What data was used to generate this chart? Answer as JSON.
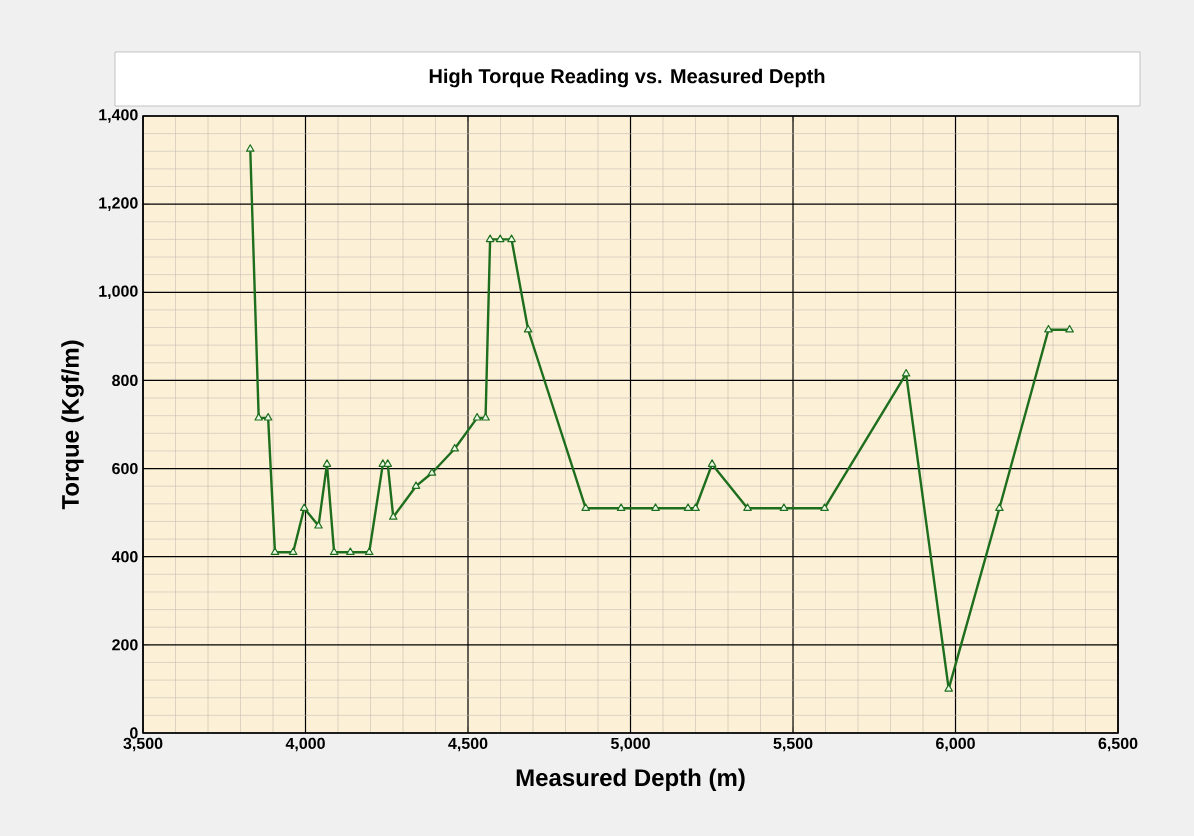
{
  "chart_data": {
    "type": "line",
    "title": "High Torque Reading vs. Measured Depth",
    "xlabel": "Measured Depth (m)",
    "ylabel": "Torque (Kgf/m)",
    "x": [
      3830,
      3856,
      3885,
      3906,
      3962,
      3996,
      4040,
      4066,
      4088,
      4138,
      4196,
      4238,
      4253,
      4270,
      4340,
      4389,
      4459,
      4528,
      4554,
      4568,
      4599,
      4634,
      4685,
      4862,
      4971,
      5077,
      5177,
      5200,
      5251,
      5360,
      5472,
      5597,
      5848,
      5979,
      6135,
      6286,
      6351
    ],
    "series": [
      {
        "color": "#1e6e1e",
        "values": [
          1325,
          715,
          715,
          410,
          410,
          510,
          470,
          610,
          410,
          410,
          410,
          610,
          610,
          490,
          560,
          590,
          645,
          715,
          715,
          1120,
          1120,
          1120,
          915,
          510,
          510,
          510,
          510,
          510,
          610,
          510,
          510,
          510,
          815,
          100,
          510,
          915,
          915
        ]
      }
    ],
    "xlim": [
      3500,
      6500
    ],
    "ylim": [
      0,
      1400
    ],
    "xticks": [
      {
        "value": 3500,
        "label": "3,500"
      },
      {
        "value": 4000,
        "label": "4,000"
      },
      {
        "value": 4500,
        "label": "4,500"
      },
      {
        "value": 5000,
        "label": "5,000"
      },
      {
        "value": 5500,
        "label": "5,500"
      },
      {
        "value": 6000,
        "label": "6,000"
      },
      {
        "value": 6500,
        "label": "6,500"
      }
    ],
    "yticks": [
      0,
      200,
      400,
      600,
      800,
      {
        "value": 1000,
        "label": "1,000"
      },
      {
        "value": 1200,
        "label": "1,200"
      },
      {
        "value": 1400,
        "label": "1,400"
      }
    ],
    "grid": true,
    "marker": "triangle",
    "line_style": "solid"
  }
}
